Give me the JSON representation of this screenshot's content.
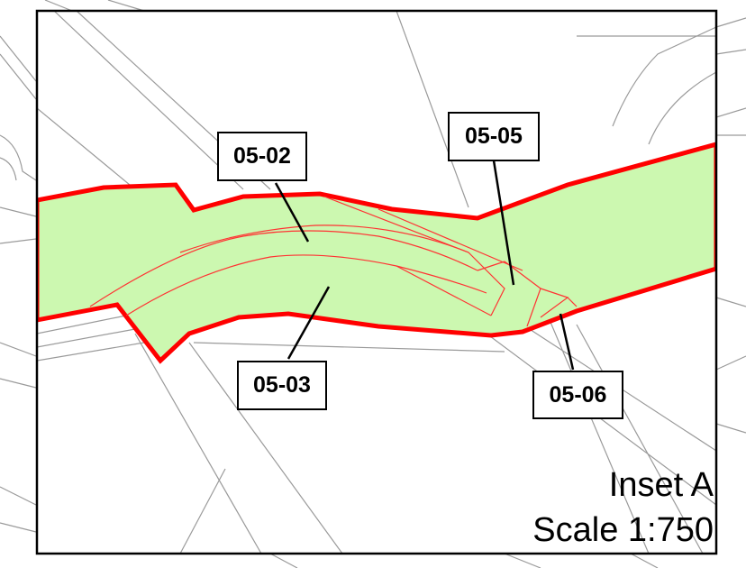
{
  "inset": {
    "title": "Inset A",
    "scale": "Scale 1:750"
  },
  "parcels": [
    {
      "label": "05-02"
    },
    {
      "label": "05-03"
    },
    {
      "label": "05-05"
    },
    {
      "label": "05-06"
    }
  ],
  "colors": {
    "boundary": "#ff0000",
    "fill": "#ccf8b0",
    "parcel_lines": "#ff3333",
    "basemap_lines": "#9a9a9a",
    "frame": "#000000"
  }
}
